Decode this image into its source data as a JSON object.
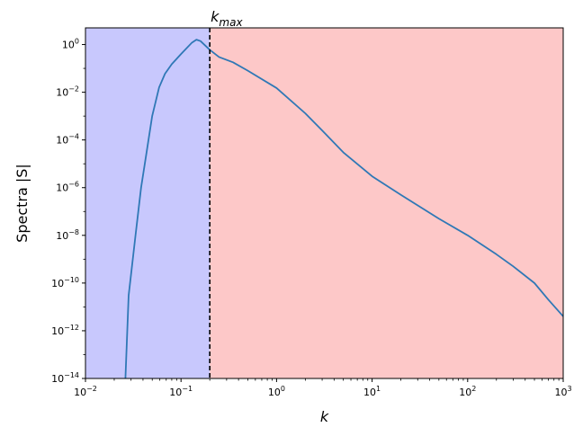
{
  "chart_data": {
    "type": "line",
    "xscale": "log",
    "yscale": "log",
    "xlim": [
      0.01,
      1000
    ],
    "ylim": [
      1e-14,
      5
    ],
    "xlabel": "k",
    "ylabel": "Spectra |S|",
    "x_ticks": [
      {
        "value": 0.01,
        "base": "10",
        "exp": "−2"
      },
      {
        "value": 0.1,
        "base": "10",
        "exp": "−1"
      },
      {
        "value": 1,
        "base": "10",
        "exp": "0"
      },
      {
        "value": 10,
        "base": "10",
        "exp": "1"
      },
      {
        "value": 100,
        "base": "10",
        "exp": "2"
      },
      {
        "value": 1000,
        "base": "10",
        "exp": "3"
      }
    ],
    "y_ticks": [
      {
        "value": 1e-14,
        "base": "10",
        "exp": "−14"
      },
      {
        "value": 1e-12,
        "base": "10",
        "exp": "−12"
      },
      {
        "value": 1e-10,
        "base": "10",
        "exp": "−10"
      },
      {
        "value": 1e-08,
        "base": "10",
        "exp": "−8"
      },
      {
        "value": 1e-06,
        "base": "10",
        "exp": "−6"
      },
      {
        "value": 0.0001,
        "base": "10",
        "exp": "−4"
      },
      {
        "value": 0.01,
        "base": "10",
        "exp": "−2"
      },
      {
        "value": 1,
        "base": "10",
        "exp": "0"
      }
    ],
    "vline": {
      "x": 0.2,
      "label_main": "k",
      "label_sub": "max",
      "style": "dashed",
      "color": "#000000"
    },
    "regions": [
      {
        "x_from": 0.01,
        "x_to": 0.2,
        "color": "#c8c8fd"
      },
      {
        "x_from": 0.2,
        "x_to": 1000,
        "color": "#fdc8c8"
      }
    ],
    "series": [
      {
        "color": "#2f78b6",
        "points": [
          [
            0.0262,
            1e-14
          ],
          [
            0.0283,
            3e-11
          ],
          [
            0.0334,
            1e-08
          ],
          [
            0.0382,
            1e-06
          ],
          [
            0.0436,
            3e-05
          ],
          [
            0.0499,
            0.001
          ],
          [
            0.059,
            0.016
          ],
          [
            0.068,
            0.06
          ],
          [
            0.08,
            0.15
          ],
          [
            0.1,
            0.4
          ],
          [
            0.13,
            1.2
          ],
          [
            0.145,
            1.6
          ],
          [
            0.16,
            1.4
          ],
          [
            0.2,
            0.6
          ],
          [
            0.25,
            0.3
          ],
          [
            0.35,
            0.18
          ],
          [
            0.5,
            0.08
          ],
          [
            1,
            0.015
          ],
          [
            2,
            0.0013
          ],
          [
            3,
            0.00025
          ],
          [
            5,
            3e-05
          ],
          [
            10,
            3e-06
          ],
          [
            20,
            5e-07
          ],
          [
            50,
            5e-08
          ],
          [
            100,
            1e-08
          ],
          [
            200,
            1.6e-09
          ],
          [
            300,
            5e-10
          ],
          [
            500,
            1e-10
          ],
          [
            700,
            2e-11
          ],
          [
            1000,
            4e-12
          ]
        ]
      }
    ]
  }
}
